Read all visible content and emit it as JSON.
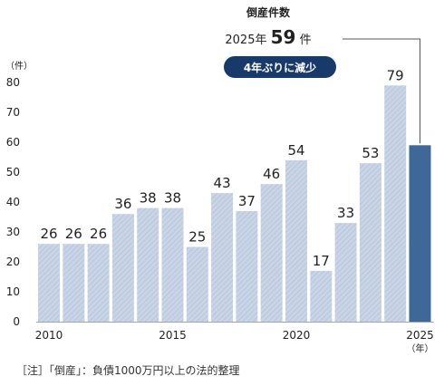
{
  "chart_data": {
    "type": "bar",
    "title": "倒産件数",
    "y_unit": "（件）",
    "x_unit": "（年）",
    "ylim": [
      0,
      80
    ],
    "yticks": [
      0,
      10,
      20,
      30,
      40,
      50,
      60,
      70,
      80
    ],
    "x_tick_labels": [
      "2010",
      "2015",
      "2020",
      "2025"
    ],
    "categories": [
      "2010",
      "2011",
      "2012",
      "2013",
      "2014",
      "2015",
      "2016",
      "2017",
      "2018",
      "2019",
      "2020",
      "2021",
      "2022",
      "2023",
      "2024",
      "2025"
    ],
    "values": [
      26,
      26,
      26,
      36,
      38,
      38,
      25,
      43,
      37,
      46,
      54,
      17,
      33,
      53,
      79,
      59
    ],
    "data_labels": [
      "26",
      "26",
      "26",
      "36",
      "38",
      "38",
      "25",
      "43",
      "37",
      "46",
      "54",
      "17",
      "33",
      "53",
      "79",
      ""
    ],
    "highlight": {
      "year": "2025年",
      "value": "59",
      "unit": "件",
      "badge": "4年ぶりに減少"
    },
    "grid": false,
    "colors": {
      "bar_fill": "#c9d5e6",
      "bar_stripe": "#aebfd6",
      "highlight_bar": "#3e6897",
      "badge_bg": "#173a6b",
      "badge_text": "#ffffff",
      "callout_line": "#555555"
    }
  },
  "footnote": "［注］「倒産」：負債1000万円以上の法的整理"
}
